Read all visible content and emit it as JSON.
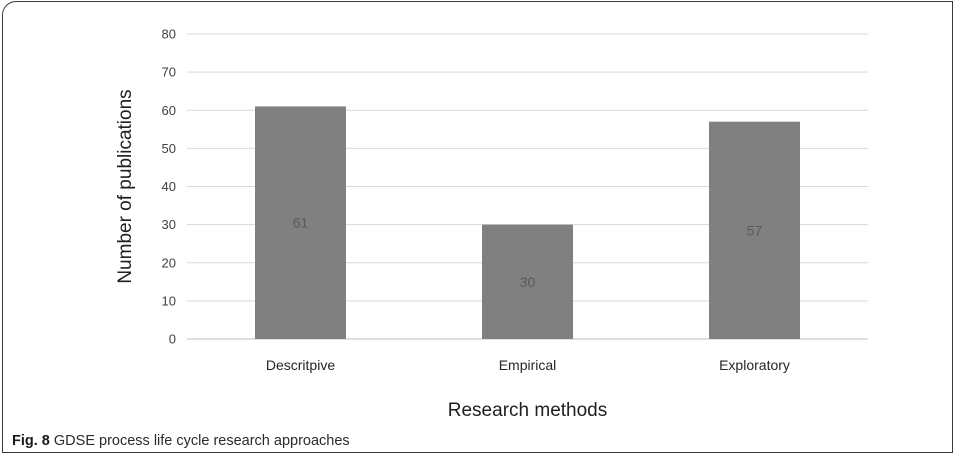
{
  "chart_data": {
    "type": "bar",
    "categories": [
      "Descritpive",
      "Empirical",
      "Exploratory"
    ],
    "values": [
      61,
      30,
      57
    ],
    "data_labels": [
      "61",
      "30",
      "57"
    ],
    "xlabel": "Research methods",
    "ylabel": "Number of publications",
    "ylim": [
      0,
      80
    ],
    "yticks": [
      0,
      10,
      20,
      30,
      40,
      50,
      60,
      70,
      80
    ],
    "grid": "horizontal",
    "legend": "none",
    "bar_color": "#808080",
    "grid_color": "#d9d9d9",
    "axis_color": "#bfbfbf"
  },
  "caption": {
    "figure_number": "Fig. 8",
    "text": "GDSE process life cycle research approaches"
  }
}
